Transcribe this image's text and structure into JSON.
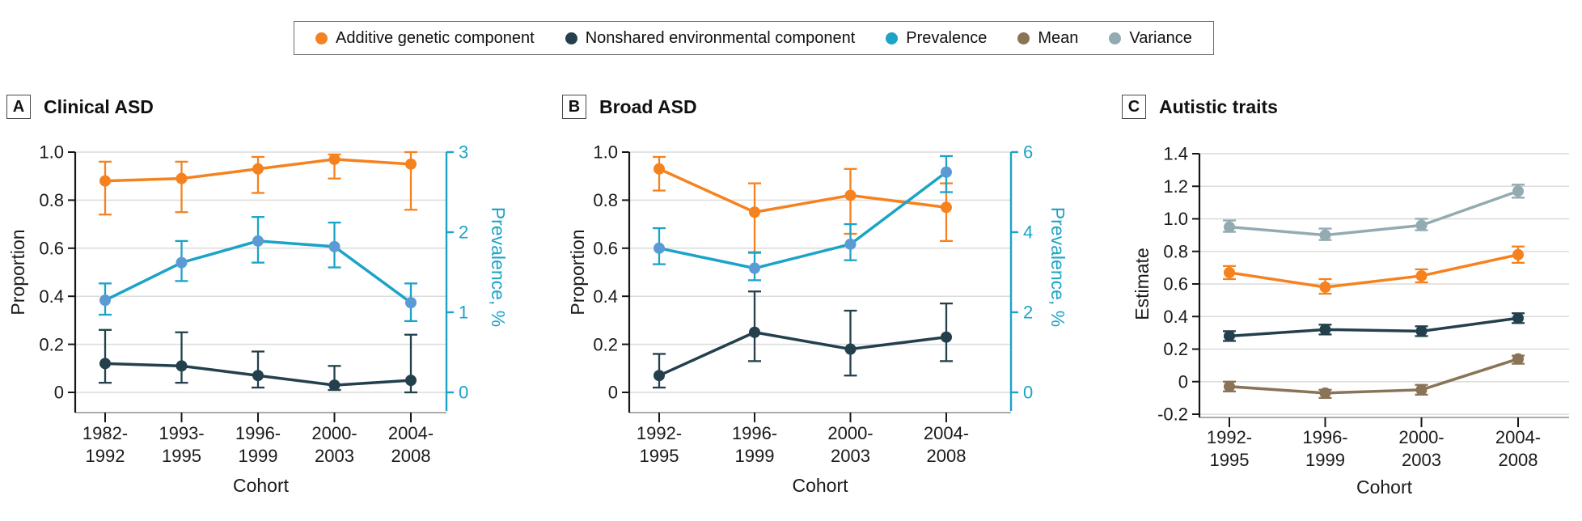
{
  "legend": {
    "items": [
      {
        "label": "Additive genetic component",
        "color": "#F5821F"
      },
      {
        "label": "Nonshared environmental component",
        "color": "#23404C"
      },
      {
        "label": "Prevalence",
        "color": "#1BA3C8"
      },
      {
        "label": "Mean",
        "color": "#8A7356"
      },
      {
        "label": "Variance",
        "color": "#92ABB1"
      }
    ]
  },
  "panels": [
    {
      "letter": "A",
      "title": "Clinical ASD"
    },
    {
      "letter": "B",
      "title": "Broad ASD"
    },
    {
      "letter": "C",
      "title": "Autistic traits"
    }
  ],
  "chart_data": [
    {
      "type": "line",
      "panel": "A",
      "title": "Clinical ASD",
      "xlabel": "Cohort",
      "ylabel": "Proportion",
      "ylim": [
        0,
        1.0
      ],
      "yticks": [
        {
          "label": "1.0",
          "value": 1.0
        },
        {
          "label": "0.8",
          "value": 0.8
        },
        {
          "label": "0.6",
          "value": 0.6
        },
        {
          "label": "0.4",
          "value": 0.4
        },
        {
          "label": "0.2",
          "value": 0.2
        },
        {
          "label": "0",
          "value": 0
        }
      ],
      "y2label": "Prevalence, %",
      "y2lim": [
        0,
        3
      ],
      "y2ticks": [
        {
          "label": "3",
          "value": 3
        },
        {
          "label": "2",
          "value": 2
        },
        {
          "label": "1",
          "value": 1
        },
        {
          "label": "0",
          "value": 0
        }
      ],
      "categories": [
        "1982-1992",
        "1993-1995",
        "1996-1999",
        "2000-2003",
        "2004-2008"
      ],
      "series": [
        {
          "name": "Additive genetic component",
          "color": "#F5821F",
          "axis": "y1",
          "values": [
            0.88,
            0.89,
            0.93,
            0.97,
            0.95
          ],
          "ci_low": [
            0.74,
            0.75,
            0.83,
            0.89,
            0.76
          ],
          "ci_high": [
            0.96,
            0.96,
            0.98,
            0.99,
            1.0
          ]
        },
        {
          "name": "Nonshared environmental component",
          "color": "#23404C",
          "axis": "y1",
          "values": [
            0.12,
            0.11,
            0.07,
            0.03,
            0.05
          ],
          "ci_low": [
            0.04,
            0.04,
            0.02,
            0.01,
            0.0
          ],
          "ci_high": [
            0.26,
            0.25,
            0.17,
            0.11,
            0.24
          ]
        },
        {
          "name": "Prevalence",
          "color": "#1BA3C8",
          "marker_color": "#5B9BD5",
          "axis": "y2",
          "values": [
            1.15,
            1.62,
            1.89,
            1.82,
            1.12
          ],
          "ci_low": [
            0.97,
            1.39,
            1.62,
            1.56,
            0.89
          ],
          "ci_high": [
            1.36,
            1.89,
            2.19,
            2.12,
            1.36
          ]
        }
      ]
    },
    {
      "type": "line",
      "panel": "B",
      "title": "Broad ASD",
      "xlabel": "Cohort",
      "ylabel": "Proportion",
      "ylim": [
        0,
        1.0
      ],
      "yticks": [
        {
          "label": "1.0",
          "value": 1.0
        },
        {
          "label": "0.8",
          "value": 0.8
        },
        {
          "label": "0.6",
          "value": 0.6
        },
        {
          "label": "0.4",
          "value": 0.4
        },
        {
          "label": "0.2",
          "value": 0.2
        },
        {
          "label": "0",
          "value": 0
        }
      ],
      "y2label": "Prevalence, %",
      "y2lim": [
        0,
        6
      ],
      "y2ticks": [
        {
          "label": "6",
          "value": 6
        },
        {
          "label": "4",
          "value": 4
        },
        {
          "label": "2",
          "value": 2
        },
        {
          "label": "0",
          "value": 0
        }
      ],
      "categories": [
        "1992-1995",
        "1996-1999",
        "2000-2003",
        "2004-2008"
      ],
      "series": [
        {
          "name": "Additive genetic component",
          "color": "#F5821F",
          "axis": "y1",
          "values": [
            0.93,
            0.75,
            0.82,
            0.77
          ],
          "ci_low": [
            0.84,
            0.58,
            0.66,
            0.63
          ],
          "ci_high": [
            0.98,
            0.87,
            0.93,
            0.87
          ]
        },
        {
          "name": "Nonshared environmental component",
          "color": "#23404C",
          "axis": "y1",
          "values": [
            0.07,
            0.25,
            0.18,
            0.23
          ],
          "ci_low": [
            0.02,
            0.13,
            0.07,
            0.13
          ],
          "ci_high": [
            0.16,
            0.42,
            0.34,
            0.37
          ]
        },
        {
          "name": "Prevalence",
          "color": "#1BA3C8",
          "marker_color": "#5B9BD5",
          "axis": "y2",
          "values": [
            3.6,
            3.1,
            3.7,
            5.5
          ],
          "ci_low": [
            3.2,
            2.8,
            3.3,
            5.0
          ],
          "ci_high": [
            4.1,
            3.5,
            4.2,
            5.9
          ]
        }
      ]
    },
    {
      "type": "line",
      "panel": "C",
      "title": "Autistic traits",
      "xlabel": "Cohort",
      "ylabel": "Estimate",
      "ylim": [
        -0.2,
        1.4
      ],
      "yticks": [
        {
          "label": "1.4",
          "value": 1.4
        },
        {
          "label": "1.2",
          "value": 1.2
        },
        {
          "label": "1.0",
          "value": 1.0
        },
        {
          "label": "0.8",
          "value": 0.8
        },
        {
          "label": "0.6",
          "value": 0.6
        },
        {
          "label": "0.4",
          "value": 0.4
        },
        {
          "label": "0.2",
          "value": 0.2
        },
        {
          "label": "0",
          "value": 0
        },
        {
          "label": "-0.2",
          "value": -0.2
        }
      ],
      "categories": [
        "1992-1995",
        "1996-1999",
        "2000-2003",
        "2004-2008"
      ],
      "series": [
        {
          "name": "Variance",
          "color": "#92ABB1",
          "axis": "y1",
          "values": [
            0.95,
            0.9,
            0.96,
            1.17
          ],
          "ci_low": [
            0.92,
            0.87,
            0.93,
            1.13
          ],
          "ci_high": [
            0.99,
            0.94,
            1.0,
            1.21
          ]
        },
        {
          "name": "Additive genetic component",
          "color": "#F5821F",
          "axis": "y1",
          "values": [
            0.67,
            0.58,
            0.65,
            0.78
          ],
          "ci_low": [
            0.63,
            0.54,
            0.61,
            0.73
          ],
          "ci_high": [
            0.71,
            0.63,
            0.69,
            0.83
          ]
        },
        {
          "name": "Nonshared environmental component",
          "color": "#23404C",
          "axis": "y1",
          "values": [
            0.28,
            0.32,
            0.31,
            0.39
          ],
          "ci_low": [
            0.25,
            0.29,
            0.28,
            0.36
          ],
          "ci_high": [
            0.31,
            0.35,
            0.34,
            0.42
          ]
        },
        {
          "name": "Mean",
          "color": "#8A7356",
          "axis": "y1",
          "values": [
            -0.03,
            -0.07,
            -0.05,
            0.14
          ],
          "ci_low": [
            -0.06,
            -0.1,
            -0.08,
            0.11
          ],
          "ci_high": [
            0.0,
            -0.05,
            -0.02,
            0.16
          ]
        }
      ]
    }
  ]
}
